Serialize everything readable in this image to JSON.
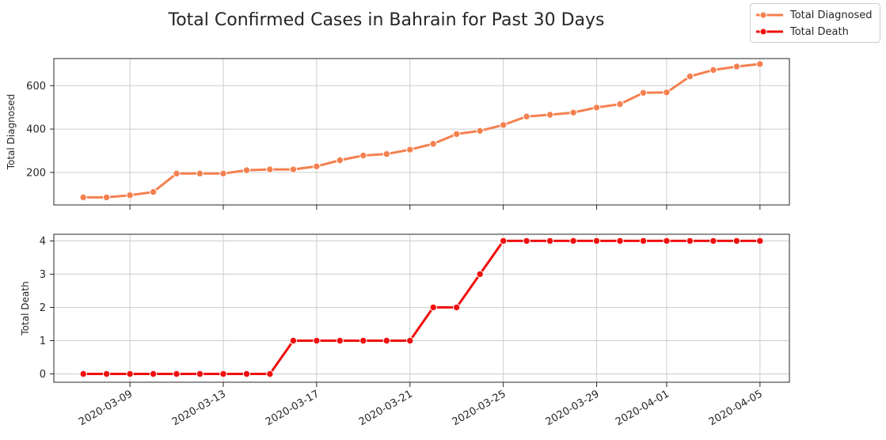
{
  "chart_data": {
    "type": "line",
    "title": "Total Confirmed Cases in Bahrain for Past 30 Days",
    "legend": {
      "placement": "top-right",
      "entries": [
        "Total Diagnosed",
        "Total Death"
      ]
    },
    "x": [
      "2020-03-07",
      "2020-03-08",
      "2020-03-09",
      "2020-03-10",
      "2020-03-11",
      "2020-03-12",
      "2020-03-13",
      "2020-03-14",
      "2020-03-15",
      "2020-03-16",
      "2020-03-17",
      "2020-03-18",
      "2020-03-19",
      "2020-03-20",
      "2020-03-21",
      "2020-03-22",
      "2020-03-23",
      "2020-03-24",
      "2020-03-25",
      "2020-03-26",
      "2020-03-27",
      "2020-03-28",
      "2020-03-29",
      "2020-03-30",
      "2020-03-31",
      "2020-04-01",
      "2020-04-02",
      "2020-04-03",
      "2020-04-04",
      "2020-04-05"
    ],
    "x_tick_labels": [
      "2020-03-09",
      "2020-03-13",
      "2020-03-17",
      "2020-03-21",
      "2020-03-25",
      "2020-03-29",
      "2020-04-01",
      "2020-04-05"
    ],
    "subplots": [
      {
        "ylabel": "Total Diagnosed",
        "ylim": [
          50,
          725
        ],
        "yticks": [
          200,
          400,
          600
        ],
        "grid": true,
        "series": [
          {
            "name": "Total Diagnosed",
            "color": "#f5804f",
            "values": [
              85,
              85,
              95,
              110,
              195,
              195,
              195,
              210,
              214,
              214,
              228,
              256,
              278,
              285,
              305,
              332,
              377,
              392,
              419,
              458,
              466,
              476,
              499,
              515,
              567,
              569,
              643,
              672,
              688,
              700
            ]
          }
        ]
      },
      {
        "ylabel": "Total Death",
        "ylim": [
          -0.25,
          4.2
        ],
        "yticks": [
          0,
          1,
          2,
          3,
          4
        ],
        "grid": true,
        "series": [
          {
            "name": "Total Death",
            "color": "#f00e0e",
            "values": [
              0,
              0,
              0,
              0,
              0,
              0,
              0,
              0,
              0,
              1,
              1,
              1,
              1,
              1,
              1,
              2,
              2,
              3,
              4,
              4,
              4,
              4,
              4,
              4,
              4,
              4,
              4,
              4,
              4,
              4
            ]
          }
        ]
      }
    ]
  }
}
